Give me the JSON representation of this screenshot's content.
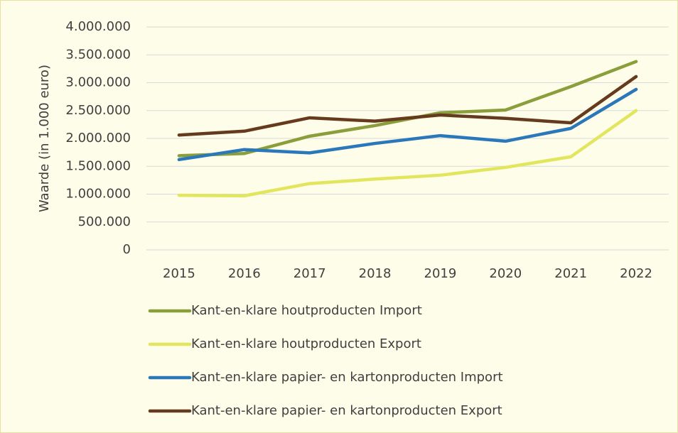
{
  "chart_data": {
    "type": "line",
    "y_label": "Waarde (in 1.000 euro)",
    "categories": [
      "2015",
      "2016",
      "2017",
      "2018",
      "2019",
      "2020",
      "2021",
      "2022"
    ],
    "series": [
      {
        "name": "Kant-en-klare houtproducten Import",
        "color": "#8a9e3c",
        "values": [
          1690000,
          1730000,
          2040000,
          2230000,
          2460000,
          2510000,
          2930000,
          3380000
        ]
      },
      {
        "name": "Kant-en-klare houtproducten Export",
        "color": "#e2e65e",
        "values": [
          980000,
          970000,
          1190000,
          1270000,
          1340000,
          1480000,
          1670000,
          2500000
        ]
      },
      {
        "name": "Kant-en-klare papier- en kartonproducten Import",
        "color": "#2a77ba",
        "values": [
          1620000,
          1800000,
          1740000,
          1910000,
          2050000,
          1950000,
          2180000,
          2880000
        ]
      },
      {
        "name": "Kant-en-klare papier- en kartonproducten Export",
        "color": "#663a1c",
        "values": [
          2060000,
          2130000,
          2370000,
          2310000,
          2420000,
          2360000,
          2280000,
          3110000
        ]
      }
    ],
    "ylim": [
      0,
      4000000
    ],
    "yticks": [
      0,
      {
        "value": 500000,
        "label": "500.000"
      },
      {
        "value": 1000000,
        "label": "1.000.000"
      },
      {
        "value": 1500000,
        "label": "1.500.000"
      },
      {
        "value": 2000000,
        "label": "2.000.000"
      },
      {
        "value": 2500000,
        "label": "2.500.000"
      },
      {
        "value": 3000000,
        "label": "3.000.000"
      },
      {
        "value": 3500000,
        "label": "3.500.000"
      },
      {
        "value": 4000000,
        "label": "4.000.000"
      }
    ],
    "grid": true,
    "legend": "bottom"
  }
}
